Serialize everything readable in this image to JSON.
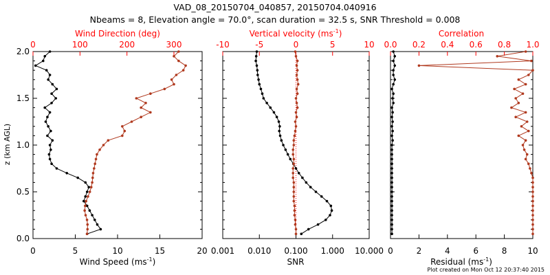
{
  "page": {
    "title": "VAD_08_20150704_040857, 20150704.040916",
    "subtitle": "Nbeams = 8, Elevation angle = 70.0°, scan duration = 32.5 s, SNR Threshold = 0.008",
    "footer": "Plot created on Mon Oct 12 20:37:40 2015",
    "colors": {
      "black": "#000000",
      "red": "#ff0000",
      "series_red": "#b0391e"
    }
  },
  "chart_data": [
    {
      "type": "line",
      "ylabel": "z (km AGL)",
      "ylim": [
        0,
        2
      ],
      "yticks": [
        "0.0",
        "0.5",
        "1.0",
        "1.5",
        "2.0"
      ],
      "bottom_axis": {
        "label_main": "Wind Speed (ms",
        "label_sup": "-1",
        "label_tail": ")",
        "xlim": [
          0,
          20
        ],
        "ticks": [
          "0",
          "5",
          "10",
          "15",
          "20"
        ]
      },
      "top_axis": {
        "label": "Wind Direction (deg)",
        "xlim": [
          0,
          360
        ],
        "ticks": [
          "0",
          "100",
          "200",
          "300"
        ]
      },
      "series": [
        {
          "name": "Wind Speed",
          "axis": "bottom",
          "color": "#000000",
          "z": [
            0.05,
            0.1,
            0.15,
            0.2,
            0.25,
            0.3,
            0.35,
            0.4,
            0.45,
            0.5,
            0.55,
            0.6,
            0.65,
            0.7,
            0.75,
            0.8,
            0.85,
            0.9,
            0.95,
            1.0,
            1.05,
            1.1,
            1.15,
            1.2,
            1.25,
            1.3,
            1.35,
            1.4,
            1.45,
            1.5,
            1.55,
            1.6,
            1.65,
            1.7,
            1.75,
            1.8,
            1.85,
            1.9,
            1.95,
            2.0
          ],
          "values": [
            6.4,
            8.0,
            7.6,
            7.3,
            7.0,
            6.7,
            6.4,
            6.0,
            6.2,
            6.4,
            6.6,
            6.2,
            5.3,
            4.0,
            2.8,
            2.2,
            2.0,
            1.9,
            2.1,
            2.0,
            2.3,
            1.7,
            2.1,
            1.8,
            1.5,
            1.7,
            2.0,
            1.4,
            2.2,
            2.7,
            2.2,
            2.8,
            2.3,
            1.8,
            2.0,
            1.6,
            0.3,
            1.2,
            1.4,
            2.0
          ]
        },
        {
          "name": "Wind Direction",
          "axis": "top",
          "color": "#b0391e",
          "z": [
            0.05,
            0.1,
            0.15,
            0.2,
            0.25,
            0.3,
            0.35,
            0.4,
            0.45,
            0.5,
            0.55,
            0.6,
            0.65,
            0.7,
            0.75,
            0.8,
            0.85,
            0.9,
            0.95,
            1.0,
            1.05,
            1.1,
            1.15,
            1.2,
            1.25,
            1.3,
            1.35,
            1.4,
            1.45,
            1.5,
            1.55,
            1.6,
            1.65,
            1.7,
            1.75,
            1.8,
            1.85,
            1.9,
            1.95,
            2.0
          ],
          "values": [
            115,
            116,
            116,
            115,
            112,
            110,
            111,
            113,
            117,
            121,
            124,
            126,
            127,
            128,
            130,
            132,
            134,
            136,
            142,
            150,
            160,
            190,
            195,
            190,
            210,
            230,
            250,
            230,
            240,
            220,
            250,
            280,
            300,
            295,
            305,
            320,
            325,
            310,
            300,
            310
          ]
        }
      ]
    },
    {
      "type": "line",
      "bottom_axis": {
        "label": "SNR",
        "scale": "log",
        "xlim": [
          0.001,
          10
        ],
        "ticks": [
          "0.001",
          "0.010",
          "0.100",
          "1.000",
          "10.000"
        ]
      },
      "top_axis": {
        "label_main": "Vertical velocity (ms",
        "label_sup": "-1",
        "label_tail": ")",
        "xlim": [
          -10,
          10
        ],
        "ticks": [
          "-10",
          "-5",
          "0",
          "5",
          "10"
        ]
      },
      "series": [
        {
          "name": "SNR",
          "axis": "bottom",
          "color": "#000000",
          "z": [
            0.05,
            0.1,
            0.15,
            0.2,
            0.25,
            0.3,
            0.35,
            0.4,
            0.45,
            0.5,
            0.55,
            0.6,
            0.65,
            0.7,
            0.75,
            0.8,
            0.85,
            0.9,
            0.95,
            1.0,
            1.05,
            1.1,
            1.15,
            1.2,
            1.25,
            1.3,
            1.35,
            1.4,
            1.45,
            1.5,
            1.55,
            1.6,
            1.65,
            1.7,
            1.75,
            1.8,
            1.85,
            1.9,
            1.95,
            2.0
          ],
          "values": [
            0.14,
            0.22,
            0.4,
            0.65,
            0.85,
            0.95,
            0.9,
            0.7,
            0.5,
            0.35,
            0.25,
            0.19,
            0.15,
            0.12,
            0.1,
            0.085,
            0.07,
            0.06,
            0.052,
            0.045,
            0.04,
            0.037,
            0.035,
            0.036,
            0.034,
            0.03,
            0.025,
            0.02,
            0.016,
            0.013,
            0.012,
            0.011,
            0.01,
            0.0095,
            0.009,
            0.0088,
            0.0085,
            0.008,
            0.0082,
            0.0085
          ]
        },
        {
          "name": "Vertical velocity",
          "axis": "top",
          "color": "#b0391e",
          "z": [
            0.05,
            0.1,
            0.15,
            0.2,
            0.25,
            0.3,
            0.35,
            0.4,
            0.45,
            0.5,
            0.55,
            0.6,
            0.65,
            0.7,
            0.75,
            0.8,
            0.85,
            0.9,
            0.95,
            1.0,
            1.05,
            1.1,
            1.15,
            1.2,
            1.25,
            1.3,
            1.35,
            1.4,
            1.45,
            1.5,
            1.55,
            1.6,
            1.65,
            1.7,
            1.75,
            1.8,
            1.85,
            1.9,
            1.95,
            2.0
          ],
          "values": [
            0.0,
            0.0,
            -0.1,
            -0.1,
            -0.2,
            -0.2,
            -0.2,
            -0.3,
            -0.3,
            -0.3,
            -0.3,
            -0.3,
            -0.4,
            -0.4,
            -0.4,
            -0.3,
            -0.3,
            -0.4,
            -0.4,
            -0.3,
            -0.3,
            -0.2,
            -0.1,
            0.0,
            -0.1,
            0.1,
            0.0,
            0.2,
            0.1,
            0.0,
            0.2,
            0.1,
            0.3,
            0.2,
            0.1,
            0.2,
            0.1,
            0.2,
            0.0,
            -0.1
          ]
        }
      ]
    },
    {
      "type": "line",
      "bottom_axis": {
        "label_main": "Residual (ms",
        "label_sup": "-1",
        "label_tail": ")",
        "xlim": [
          0,
          10
        ],
        "ticks": [
          "0",
          "2",
          "4",
          "6",
          "8",
          "10"
        ]
      },
      "top_axis": {
        "label": "Correlation",
        "xlim": [
          0,
          1
        ],
        "ticks": [
          "0.0",
          "0.2",
          "0.4",
          "0.6",
          "0.8",
          "1.0"
        ]
      },
      "series": [
        {
          "name": "Residual",
          "axis": "bottom",
          "color": "#000000",
          "z": [
            0.05,
            0.1,
            0.15,
            0.2,
            0.25,
            0.3,
            0.35,
            0.4,
            0.45,
            0.5,
            0.55,
            0.6,
            0.65,
            0.7,
            0.75,
            0.8,
            0.85,
            0.9,
            0.95,
            1.0,
            1.05,
            1.1,
            1.15,
            1.2,
            1.25,
            1.3,
            1.35,
            1.4,
            1.45,
            1.5,
            1.55,
            1.6,
            1.65,
            1.7,
            1.75,
            1.8,
            1.85,
            1.9,
            1.95,
            2.0
          ],
          "values": [
            0.1,
            0.1,
            0.1,
            0.1,
            0.1,
            0.1,
            0.1,
            0.1,
            0.1,
            0.1,
            0.1,
            0.1,
            0.1,
            0.1,
            0.1,
            0.1,
            0.1,
            0.1,
            0.1,
            0.1,
            0.15,
            0.1,
            0.15,
            0.1,
            0.15,
            0.1,
            0.15,
            0.1,
            0.2,
            0.15,
            0.2,
            0.1,
            0.2,
            0.3,
            0.2,
            0.2,
            0.3,
            0.2,
            0.3,
            0.2
          ]
        },
        {
          "name": "Correlation",
          "axis": "top",
          "color": "#b0391e",
          "z": [
            0.05,
            0.1,
            0.15,
            0.2,
            0.25,
            0.3,
            0.35,
            0.4,
            0.45,
            0.5,
            0.55,
            0.6,
            0.65,
            0.7,
            0.75,
            0.8,
            0.85,
            0.9,
            0.95,
            1.0,
            1.05,
            1.1,
            1.15,
            1.2,
            1.25,
            1.3,
            1.35,
            1.4,
            1.45,
            1.5,
            1.55,
            1.6,
            1.65,
            1.7,
            1.75,
            1.8,
            1.85,
            1.9,
            1.95,
            2.0
          ],
          "values": [
            1.0,
            1.0,
            1.0,
            1.0,
            1.0,
            1.0,
            1.0,
            1.0,
            1.0,
            1.0,
            1.0,
            1.0,
            1.0,
            0.99,
            0.98,
            0.97,
            0.95,
            0.96,
            0.94,
            0.93,
            0.95,
            0.9,
            0.97,
            0.92,
            0.96,
            0.88,
            0.95,
            0.85,
            0.9,
            0.88,
            0.93,
            0.87,
            0.95,
            0.9,
            0.97,
            1.0,
            0.2,
            0.99,
            0.75,
            0.95
          ]
        }
      ]
    }
  ]
}
